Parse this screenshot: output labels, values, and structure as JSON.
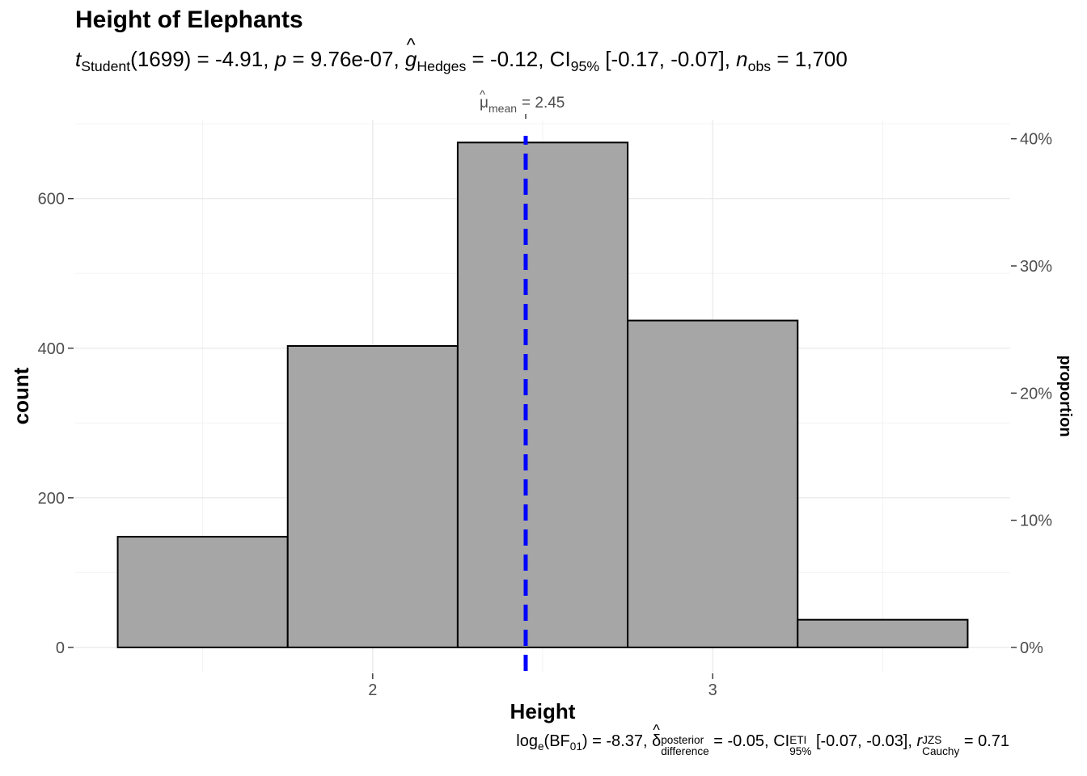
{
  "chart_data": {
    "type": "bar",
    "title": "Height of Elephants",
    "xlabel": "Height",
    "ylabel": "count",
    "y2label": "proportion",
    "xlim": [
      1.125,
      3.875
    ],
    "ylim": [
      -33.6,
      705.6
    ],
    "x_ticks": [
      "2",
      "3"
    ],
    "y_ticks": [
      "0",
      "200",
      "400",
      "600"
    ],
    "y2_ticks": [
      "0%",
      "10%",
      "20%",
      "30%",
      "40%"
    ],
    "grid": true,
    "bins": [
      {
        "from": 1.25,
        "to": 1.75,
        "count": 148
      },
      {
        "from": 1.75,
        "to": 2.25,
        "count": 403
      },
      {
        "from": 2.25,
        "to": 2.75,
        "count": 675
      },
      {
        "from": 2.75,
        "to": 3.25,
        "count": 437
      },
      {
        "from": 3.25,
        "to": 3.75,
        "count": 37
      }
    ],
    "mean_line": {
      "value": 2.45,
      "label_value": "= 2.45",
      "color": "#0000ff"
    },
    "bar_fill": "#a6a6a6",
    "bar_stroke": "#000000"
  },
  "stats": {
    "t_label": "t",
    "t_sub": "Student",
    "t_df": "(1699)",
    "t_val": "= -4.91,",
    "p_label": "p",
    "p_val": "= 9.76e-07,",
    "g_label": "g",
    "g_sub": "Hedges",
    "g_val": "= -0.12,",
    "ci_label": "CI",
    "ci_sub": "95%",
    "ci_val": "[-0.17, -0.07],",
    "n_label": "n",
    "n_sub": "obs",
    "n_val": "= 1,700"
  },
  "bayes": {
    "log_label": "log",
    "log_sub": "e",
    "bf_open": "(BF",
    "bf_sub": "01",
    "bf_close": ")",
    "bf_val": "= -8.37,",
    "delta_label": "δ",
    "delta_sup": "posterior",
    "delta_sub": "difference",
    "delta_val": "= -0.05,",
    "ci_label": "CI",
    "ci_sup": "ETI",
    "ci_sub": "95%",
    "ci_val": "[-0.07, -0.03],",
    "r_label": "r",
    "r_sup": "JZS",
    "r_sub": "Cauchy",
    "r_val": "= 0.71"
  },
  "mean_annotation": {
    "symbol": "μ",
    "sub": "mean"
  }
}
